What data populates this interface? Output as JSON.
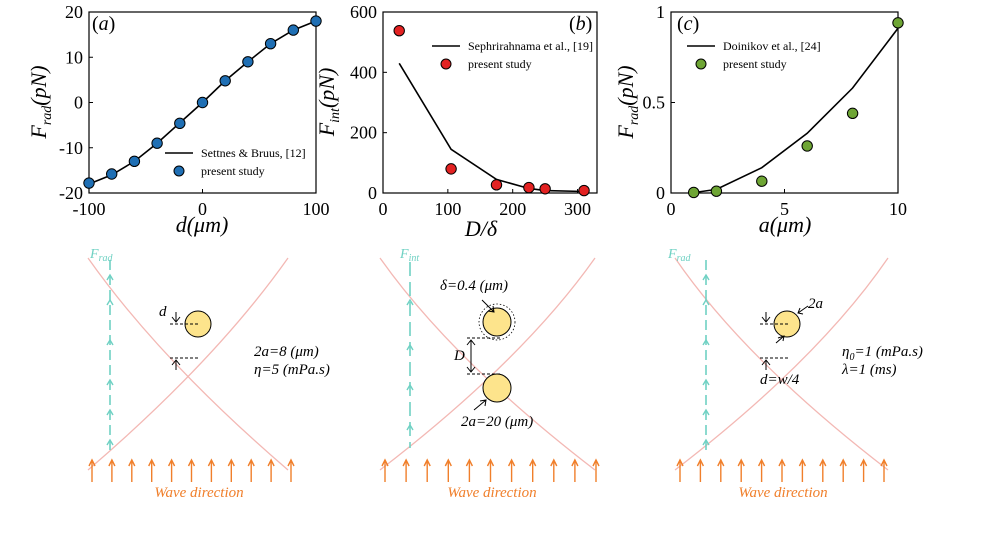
{
  "chart_data": [
    {
      "type": "scatter",
      "panel_label": "(a)",
      "xlabel": "d(μm)",
      "ylabel": "F_rad(pN)",
      "xlim": [
        -100,
        100
      ],
      "ylim": [
        -20,
        20
      ],
      "xticks": [
        "-100",
        "0",
        "100"
      ],
      "yticks": [
        "-20",
        "-10",
        "0",
        "10",
        "20"
      ],
      "legend_position": "bottom-right",
      "series": [
        {
          "name": "Settnes & Bruus, [12]",
          "kind": "line",
          "color": "#000000",
          "x": [
            -100,
            -80,
            -60,
            -40,
            -20,
            0,
            20,
            40,
            60,
            80,
            100
          ],
          "y": [
            -18,
            -16,
            -13,
            -9,
            -4.5,
            0,
            4.8,
            9,
            13,
            16,
            18
          ]
        },
        {
          "name": "present study",
          "kind": "marker",
          "color": "#1f6fb4",
          "x": [
            -100,
            -80,
            -60,
            -40,
            -20,
            0,
            20,
            40,
            60,
            80,
            100
          ],
          "y": [
            -17.8,
            -15.8,
            -13,
            -9,
            -4.6,
            0,
            4.8,
            9,
            13,
            16,
            18
          ]
        }
      ]
    },
    {
      "type": "scatter",
      "panel_label": "(b)",
      "xlabel": "D/δ",
      "ylabel": "F_int(pN)",
      "xlim": [
        0,
        330
      ],
      "ylim": [
        0,
        600
      ],
      "xticks": [
        "0",
        "100",
        "200",
        "300"
      ],
      "yticks": [
        "0",
        "200",
        "400",
        "600"
      ],
      "legend_position": "top-right",
      "series": [
        {
          "name": "Sephrirahnama et al., [19]",
          "kind": "line",
          "color": "#000000",
          "x": [
            25,
            105,
            175,
            225,
            250,
            310
          ],
          "y": [
            430,
            145,
            45,
            15,
            8,
            5
          ]
        },
        {
          "name": "present study",
          "kind": "marker",
          "color": "#e32222",
          "x": [
            25,
            105,
            175,
            225,
            250,
            310
          ],
          "y": [
            538,
            80,
            27,
            18,
            14,
            8
          ]
        }
      ]
    },
    {
      "type": "scatter",
      "panel_label": "(c)",
      "xlabel": "a(μm)",
      "ylabel": "F_rad(pN)",
      "xlim": [
        0,
        10
      ],
      "ylim": [
        0,
        1
      ],
      "xticks": [
        "0",
        "5",
        "10"
      ],
      "yticks": [
        "0",
        "0.5",
        "1"
      ],
      "legend_position": "top-left",
      "series": [
        {
          "name": "Doinikov et al., [24]",
          "kind": "line",
          "color": "#000000",
          "x": [
            1,
            2,
            4,
            6,
            8,
            10
          ],
          "y": [
            0.002,
            0.02,
            0.14,
            0.33,
            0.58,
            0.91
          ]
        },
        {
          "name": "present study",
          "kind": "marker",
          "color": "#6ea534",
          "x": [
            1,
            2,
            4,
            6,
            8,
            10
          ],
          "y": [
            0.003,
            0.01,
            0.065,
            0.26,
            0.44,
            0.94
          ]
        }
      ]
    }
  ],
  "schematics": {
    "force_rad": "F",
    "force_rad_sub": "rad",
    "force_int": "F",
    "force_int_sub": "int",
    "wave_direction": "Wave direction",
    "left": {
      "d_label": "d",
      "size": "2a=8 (μm)",
      "viscosity": "η=5  (mPa.s)"
    },
    "middle": {
      "delta": "δ=0.4  (μm)",
      "D": "D",
      "size": "2a=20 (μm)"
    },
    "right": {
      "size": "2a",
      "viscosity": "η",
      "viscosity_sub": "0",
      "viscosity_val": "=1 (mPa.s)",
      "lambda": "λ=1  (ms)",
      "d_label": "d=w/4"
    },
    "colors": {
      "wave": "#f07f2b",
      "force": "#6fd1c3",
      "beam": "#f3b8b4",
      "particle": "#fde48c"
    }
  }
}
